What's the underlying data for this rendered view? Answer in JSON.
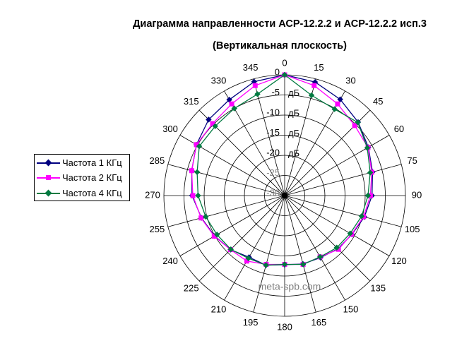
{
  "title": {
    "line1": "Диаграмма направленности АСР-12.2.2 и АСР-12.2.2 исп.3",
    "line2": "(Вертикальная плоскость)"
  },
  "watermark": {
    "text": "meta-spb.com",
    "color": "#7f7f7f"
  },
  "legend": {
    "items": [
      {
        "label": "Частота 1 КГц",
        "color": "#000080",
        "marker": "diamond"
      },
      {
        "label": "Частота 2 КГц",
        "color": "#ff00ff",
        "marker": "square"
      },
      {
        "label": "Частота 4 КГц",
        "color": "#007a40",
        "marker": "diamond"
      }
    ]
  },
  "chart_data": {
    "type": "line",
    "subtype": "polar",
    "title": "Диаграмма направленности АСР-12.2.2 и АСР-12.2.2 исп.3 (Вертикальная плоскость)",
    "units": "дБ",
    "angle_ticks_deg": [
      0,
      15,
      30,
      45,
      60,
      75,
      90,
      105,
      120,
      135,
      150,
      165,
      180,
      195,
      210,
      225,
      240,
      255,
      270,
      285,
      300,
      315,
      330,
      345
    ],
    "radial_ticks": [
      0,
      -5,
      -10,
      -15,
      -20,
      -25,
      -30
    ],
    "radial_unit_levels": [
      -5,
      -10,
      -15,
      -20
    ],
    "muted_levels": [
      -25,
      -30
    ],
    "muted_color": "#8a8a8a",
    "rlim": [
      -30,
      0
    ],
    "grid": true,
    "legend_position": "left",
    "series": [
      {
        "name": "Частота 1 КГц",
        "color": "#000080",
        "marker": "diamond",
        "values": [
          0,
          -0.8,
          -2.4,
          -4.2,
          -6.0,
          -7.4,
          -8.3,
          -9.5,
          -10.7,
          -11.3,
          -12.2,
          -12.4,
          -12.8,
          -12.1,
          -12.3,
          -11.0,
          -9.9,
          -8.6,
          -7.0,
          -6.1,
          -4.7,
          -3.3,
          -2.5,
          -0.7
        ]
      },
      {
        "name": "Частота 2 КГц",
        "color": "#ff00ff",
        "marker": "square",
        "values": [
          0,
          -1.7,
          -3.7,
          -5.4,
          -6.1,
          -7.6,
          -8.7,
          -9.7,
          -10.8,
          -11.1,
          -12.4,
          -12.3,
          -12.9,
          -12.3,
          -11.2,
          -11.0,
          -9.8,
          -8.5,
          -7.2,
          -6.1,
          -4.7,
          -4.7,
          -3.7,
          -1.7
        ]
      },
      {
        "name": "Частота 4 КГц",
        "color": "#007a40",
        "marker": "diamond",
        "values": [
          0,
          -4.2,
          -5.2,
          -4.3,
          -6.3,
          -8.0,
          -9.3,
          -10.2,
          -11.2,
          -11.7,
          -12.4,
          -12.3,
          -12.9,
          -12.1,
          -12.0,
          -11.1,
          -10.6,
          -9.7,
          -8.5,
          -7.5,
          -5.5,
          -5.6,
          -5.0,
          -3.9
        ]
      }
    ]
  }
}
